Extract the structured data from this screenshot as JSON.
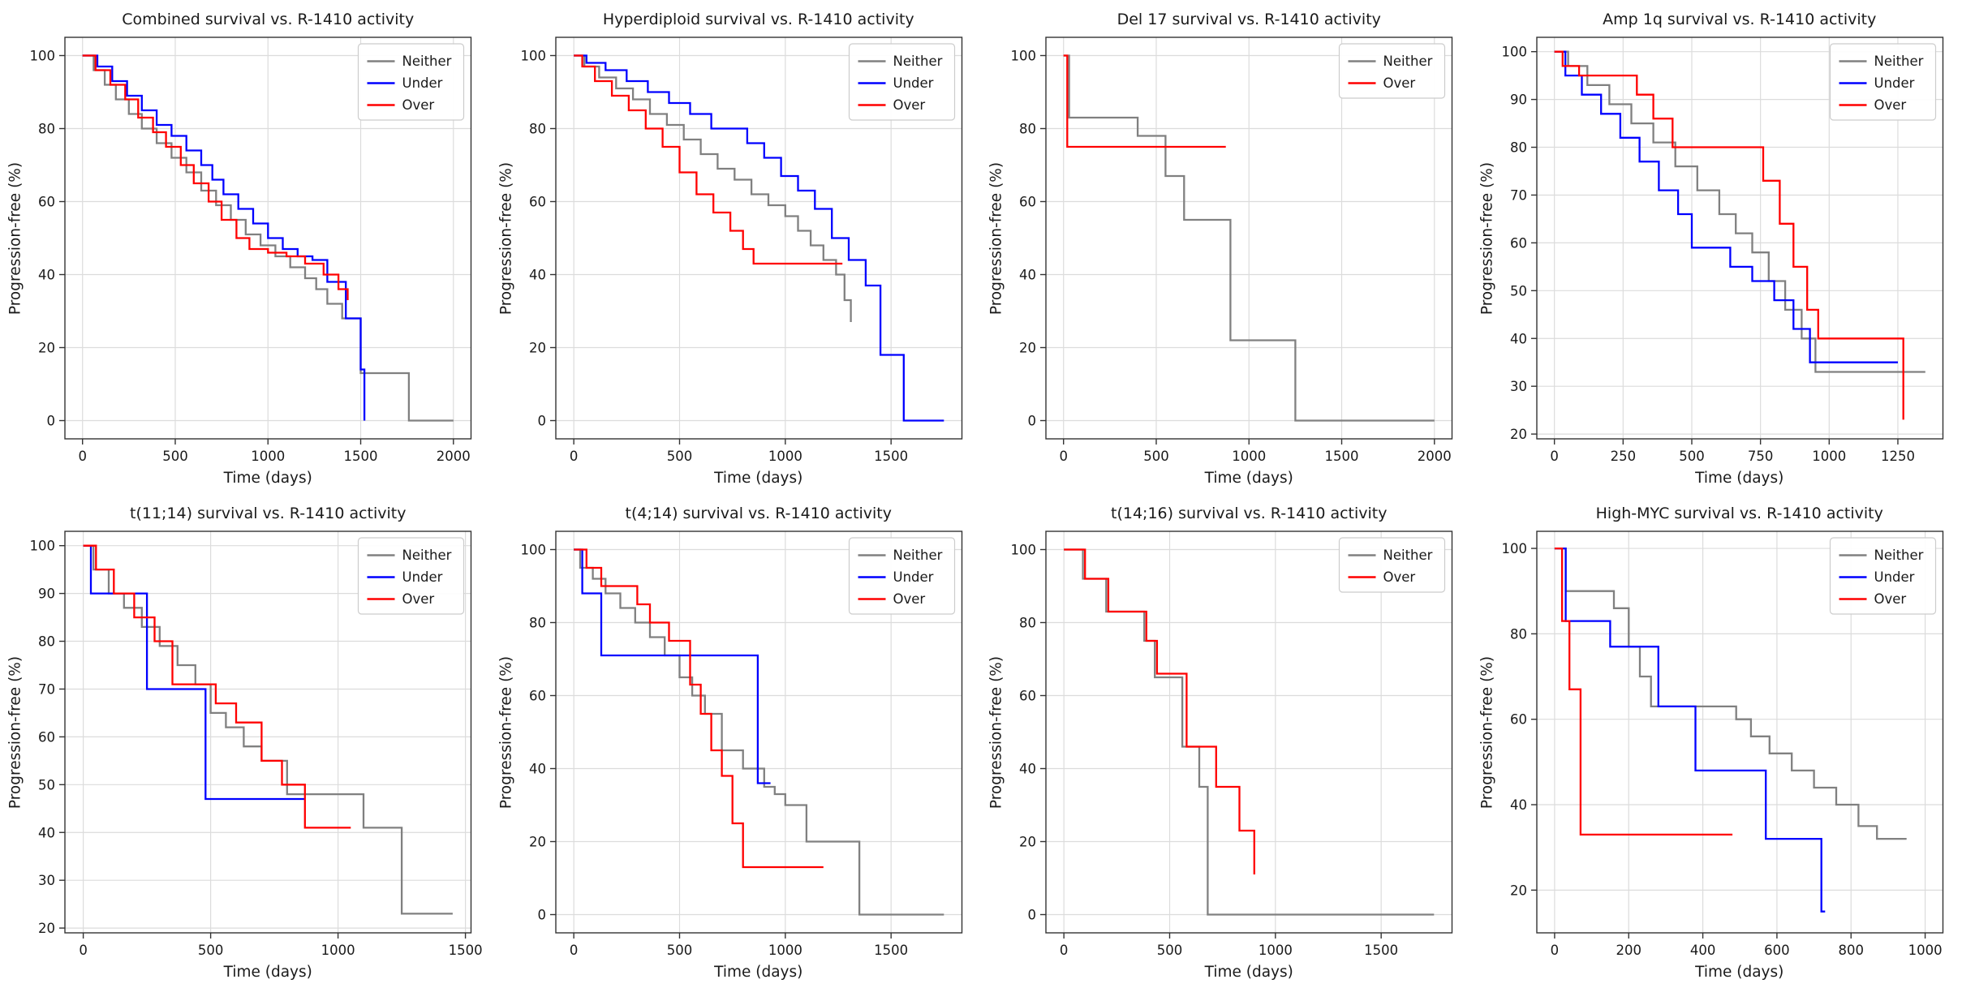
{
  "figure": {
    "background": "#ffffff",
    "grid_color": "#dcdcdc",
    "axis_color": "#333333",
    "text_color": "#1a1a1a",
    "legend_border_color": "#cccccc",
    "series_colors": {
      "Neither": "#808080",
      "Under": "#0000ff",
      "Over": "#ff0000"
    }
  },
  "chart_data": [
    {
      "type": "line",
      "step": true,
      "title": "Combined survival vs. R-1410 activity",
      "xlabel": "Time (days)",
      "ylabel": "Progression-free (%)",
      "xlim": [
        -95,
        2095
      ],
      "ylim": [
        -5,
        105
      ],
      "xticks": [
        0,
        500,
        1000,
        1500,
        2000
      ],
      "yticks": [
        0,
        20,
        40,
        60,
        80,
        100
      ],
      "legend_position": "upper right",
      "series": [
        {
          "name": "Neither",
          "color": "#808080",
          "x": [
            0,
            60,
            120,
            180,
            250,
            320,
            400,
            480,
            560,
            640,
            720,
            800,
            880,
            960,
            1040,
            1120,
            1200,
            1260,
            1320,
            1400,
            1500,
            1760,
            2000
          ],
          "y": [
            100,
            96,
            92,
            88,
            84,
            80,
            76,
            72,
            68,
            63,
            59,
            55,
            51,
            48,
            45,
            42,
            39,
            36,
            32,
            28,
            13,
            0,
            0
          ]
        },
        {
          "name": "Under",
          "color": "#0000ff",
          "x": [
            0,
            80,
            160,
            240,
            320,
            400,
            480,
            560,
            640,
            700,
            760,
            840,
            920,
            1000,
            1080,
            1160,
            1240,
            1320,
            1420,
            1500,
            1520
          ],
          "y": [
            100,
            97,
            93,
            89,
            85,
            81,
            78,
            74,
            70,
            66,
            62,
            58,
            54,
            50,
            47,
            45,
            44,
            38,
            28,
            14,
            0
          ]
        },
        {
          "name": "Over",
          "color": "#ff0000",
          "x": [
            0,
            70,
            150,
            230,
            300,
            380,
            450,
            530,
            600,
            680,
            750,
            830,
            900,
            1000,
            1100,
            1200,
            1300,
            1380,
            1430
          ],
          "y": [
            100,
            96,
            92,
            88,
            83,
            79,
            75,
            70,
            65,
            60,
            55,
            50,
            47,
            46,
            45,
            43,
            40,
            36,
            33
          ]
        }
      ]
    },
    {
      "type": "line",
      "step": true,
      "title": "Hyperdiploid survival vs. R-1410 activity",
      "xlabel": "Time (days)",
      "ylabel": "Progression-free (%)",
      "xlim": [
        -85,
        1835
      ],
      "ylim": [
        -5,
        105
      ],
      "xticks": [
        0,
        500,
        1000,
        1500
      ],
      "yticks": [
        0,
        20,
        40,
        60,
        80,
        100
      ],
      "legend_position": "upper right",
      "series": [
        {
          "name": "Neither",
          "color": "#808080",
          "x": [
            0,
            50,
            120,
            200,
            280,
            360,
            440,
            520,
            600,
            680,
            760,
            840,
            920,
            1000,
            1060,
            1120,
            1180,
            1240,
            1280,
            1310
          ],
          "y": [
            100,
            97,
            94,
            91,
            88,
            84,
            81,
            77,
            73,
            69,
            66,
            62,
            59,
            56,
            52,
            48,
            44,
            40,
            33,
            27
          ]
        },
        {
          "name": "Under",
          "color": "#0000ff",
          "x": [
            0,
            60,
            150,
            250,
            350,
            450,
            550,
            650,
            820,
            900,
            980,
            1060,
            1140,
            1220,
            1300,
            1380,
            1450,
            1560,
            1750
          ],
          "y": [
            100,
            98,
            96,
            93,
            90,
            87,
            84,
            80,
            76,
            72,
            67,
            63,
            58,
            50,
            44,
            37,
            18,
            0,
            0
          ]
        },
        {
          "name": "Over",
          "color": "#ff0000",
          "x": [
            0,
            40,
            100,
            180,
            260,
            340,
            420,
            500,
            580,
            660,
            740,
            800,
            850,
            1270
          ],
          "y": [
            100,
            97,
            93,
            89,
            85,
            80,
            75,
            68,
            62,
            57,
            52,
            47,
            43,
            43
          ]
        }
      ]
    },
    {
      "type": "line",
      "step": true,
      "title": "Del 17 survival vs. R-1410 activity",
      "xlabel": "Time (days)",
      "ylabel": "Progression-free (%)",
      "xlim": [
        -95,
        2095
      ],
      "ylim": [
        -5,
        105
      ],
      "xticks": [
        0,
        500,
        1000,
        1500,
        2000
      ],
      "yticks": [
        0,
        20,
        40,
        60,
        80,
        100
      ],
      "legend_position": "upper right",
      "series": [
        {
          "name": "Neither",
          "color": "#808080",
          "x": [
            0,
            30,
            400,
            550,
            650,
            900,
            1250,
            2000
          ],
          "y": [
            100,
            83,
            78,
            67,
            55,
            22,
            0,
            0
          ]
        },
        {
          "name": "Over",
          "color": "#ff0000",
          "x": [
            0,
            20,
            875
          ],
          "y": [
            100,
            75,
            75
          ]
        }
      ]
    },
    {
      "type": "line",
      "step": true,
      "title": "Amp 1q survival vs. R-1410 activity",
      "xlabel": "Time (days)",
      "ylabel": "Progression-free (%)",
      "xlim": [
        -64,
        1414
      ],
      "ylim": [
        19,
        103
      ],
      "xticks": [
        0,
        250,
        500,
        750,
        1000,
        1250
      ],
      "yticks": [
        20,
        30,
        40,
        50,
        60,
        70,
        80,
        90,
        100
      ],
      "legend_position": "upper right",
      "series": [
        {
          "name": "Neither",
          "color": "#808080",
          "x": [
            0,
            50,
            120,
            200,
            280,
            360,
            440,
            520,
            600,
            660,
            720,
            780,
            840,
            900,
            950,
            1350
          ],
          "y": [
            100,
            97,
            93,
            89,
            85,
            81,
            76,
            71,
            66,
            62,
            58,
            52,
            46,
            40,
            33,
            33
          ]
        },
        {
          "name": "Under",
          "color": "#0000ff",
          "x": [
            0,
            40,
            100,
            170,
            240,
            310,
            380,
            450,
            500,
            640,
            720,
            800,
            870,
            930,
            1250
          ],
          "y": [
            100,
            95,
            91,
            87,
            82,
            77,
            71,
            66,
            59,
            55,
            52,
            48,
            42,
            35,
            35
          ]
        },
        {
          "name": "Over",
          "color": "#ff0000",
          "x": [
            0,
            30,
            90,
            300,
            360,
            430,
            700,
            760,
            820,
            870,
            920,
            960,
            1240,
            1270
          ],
          "y": [
            100,
            97,
            95,
            91,
            86,
            80,
            80,
            73,
            64,
            55,
            46,
            40,
            40,
            23
          ]
        }
      ]
    },
    {
      "type": "line",
      "step": true,
      "title": "t(11;14) survival vs. R-1410 activity",
      "xlabel": "Time (days)",
      "ylabel": "Progression-free (%)",
      "xlim": [
        -72,
        1522
      ],
      "ylim": [
        19,
        103
      ],
      "xticks": [
        0,
        500,
        1000,
        1500
      ],
      "yticks": [
        20,
        30,
        40,
        50,
        60,
        70,
        80,
        90,
        100
      ],
      "legend_position": "upper right",
      "series": [
        {
          "name": "Neither",
          "color": "#808080",
          "x": [
            0,
            40,
            100,
            160,
            230,
            300,
            370,
            440,
            500,
            560,
            630,
            700,
            800,
            1100,
            1250,
            1450
          ],
          "y": [
            100,
            95,
            90,
            87,
            83,
            79,
            75,
            71,
            65,
            62,
            58,
            55,
            48,
            41,
            23,
            23
          ]
        },
        {
          "name": "Under",
          "color": "#0000ff",
          "x": [
            0,
            30,
            250,
            480,
            870
          ],
          "y": [
            100,
            90,
            70,
            47,
            47
          ]
        },
        {
          "name": "Over",
          "color": "#ff0000",
          "x": [
            0,
            50,
            120,
            200,
            280,
            350,
            520,
            600,
            700,
            780,
            870,
            1050
          ],
          "y": [
            100,
            95,
            90,
            85,
            80,
            71,
            67,
            63,
            55,
            50,
            41,
            41
          ]
        }
      ]
    },
    {
      "type": "line",
      "step": true,
      "title": "t(4;14) survival vs. R-1410 activity",
      "xlabel": "Time (days)",
      "ylabel": "Progression-free (%)",
      "xlim": [
        -85,
        1835
      ],
      "ylim": [
        -5,
        105
      ],
      "xticks": [
        0,
        500,
        1000,
        1500
      ],
      "yticks": [
        0,
        20,
        40,
        60,
        80,
        100
      ],
      "legend_position": "upper right",
      "series": [
        {
          "name": "Neither",
          "color": "#808080",
          "x": [
            0,
            30,
            90,
            150,
            220,
            290,
            360,
            430,
            500,
            560,
            620,
            700,
            800,
            900,
            950,
            1000,
            1100,
            1350,
            1750
          ],
          "y": [
            100,
            95,
            92,
            88,
            84,
            80,
            76,
            71,
            65,
            60,
            55,
            45,
            40,
            35,
            33,
            30,
            20,
            0,
            0
          ]
        },
        {
          "name": "Under",
          "color": "#0000ff",
          "x": [
            0,
            40,
            130,
            870,
            930
          ],
          "y": [
            100,
            88,
            71,
            36,
            36
          ]
        },
        {
          "name": "Over",
          "color": "#ff0000",
          "x": [
            0,
            60,
            130,
            300,
            360,
            450,
            550,
            600,
            650,
            700,
            750,
            800,
            1180
          ],
          "y": [
            100,
            95,
            90,
            85,
            80,
            75,
            63,
            55,
            45,
            38,
            25,
            13,
            13
          ]
        }
      ]
    },
    {
      "type": "line",
      "step": true,
      "title": "t(14;16) survival vs. R-1410 activity",
      "xlabel": "Time (days)",
      "ylabel": "Progression-free (%)",
      "xlim": [
        -85,
        1835
      ],
      "ylim": [
        -5,
        105
      ],
      "xticks": [
        0,
        500,
        1000,
        1500
      ],
      "yticks": [
        0,
        20,
        40,
        60,
        80,
        100
      ],
      "legend_position": "upper right",
      "series": [
        {
          "name": "Neither",
          "color": "#808080",
          "x": [
            0,
            90,
            200,
            380,
            430,
            560,
            640,
            680,
            1750
          ],
          "y": [
            100,
            92,
            83,
            75,
            65,
            46,
            35,
            0,
            0
          ]
        },
        {
          "name": "Over",
          "color": "#ff0000",
          "x": [
            0,
            100,
            210,
            390,
            440,
            580,
            720,
            830,
            900
          ],
          "y": [
            100,
            92,
            83,
            75,
            66,
            46,
            35,
            23,
            11
          ]
        }
      ]
    },
    {
      "type": "line",
      "step": true,
      "title": "High-MYC survival vs. R-1410 activity",
      "xlabel": "Time (days)",
      "ylabel": "Progression-free (%)",
      "xlim": [
        -48,
        1048
      ],
      "ylim": [
        10,
        104
      ],
      "xticks": [
        0,
        200,
        400,
        600,
        800,
        1000
      ],
      "yticks": [
        20,
        40,
        60,
        80,
        100
      ],
      "legend_position": "upper right",
      "series": [
        {
          "name": "Neither",
          "color": "#808080",
          "x": [
            0,
            30,
            160,
            200,
            230,
            260,
            450,
            490,
            530,
            580,
            640,
            700,
            760,
            820,
            870,
            950
          ],
          "y": [
            100,
            90,
            86,
            77,
            70,
            63,
            63,
            60,
            56,
            52,
            48,
            44,
            40,
            35,
            32,
            32
          ]
        },
        {
          "name": "Under",
          "color": "#0000ff",
          "x": [
            0,
            30,
            150,
            280,
            380,
            570,
            720,
            730
          ],
          "y": [
            100,
            83,
            77,
            63,
            48,
            32,
            15,
            15
          ]
        },
        {
          "name": "Over",
          "color": "#ff0000",
          "x": [
            0,
            20,
            40,
            70,
            480
          ],
          "y": [
            100,
            83,
            67,
            33,
            33
          ]
        }
      ]
    }
  ]
}
